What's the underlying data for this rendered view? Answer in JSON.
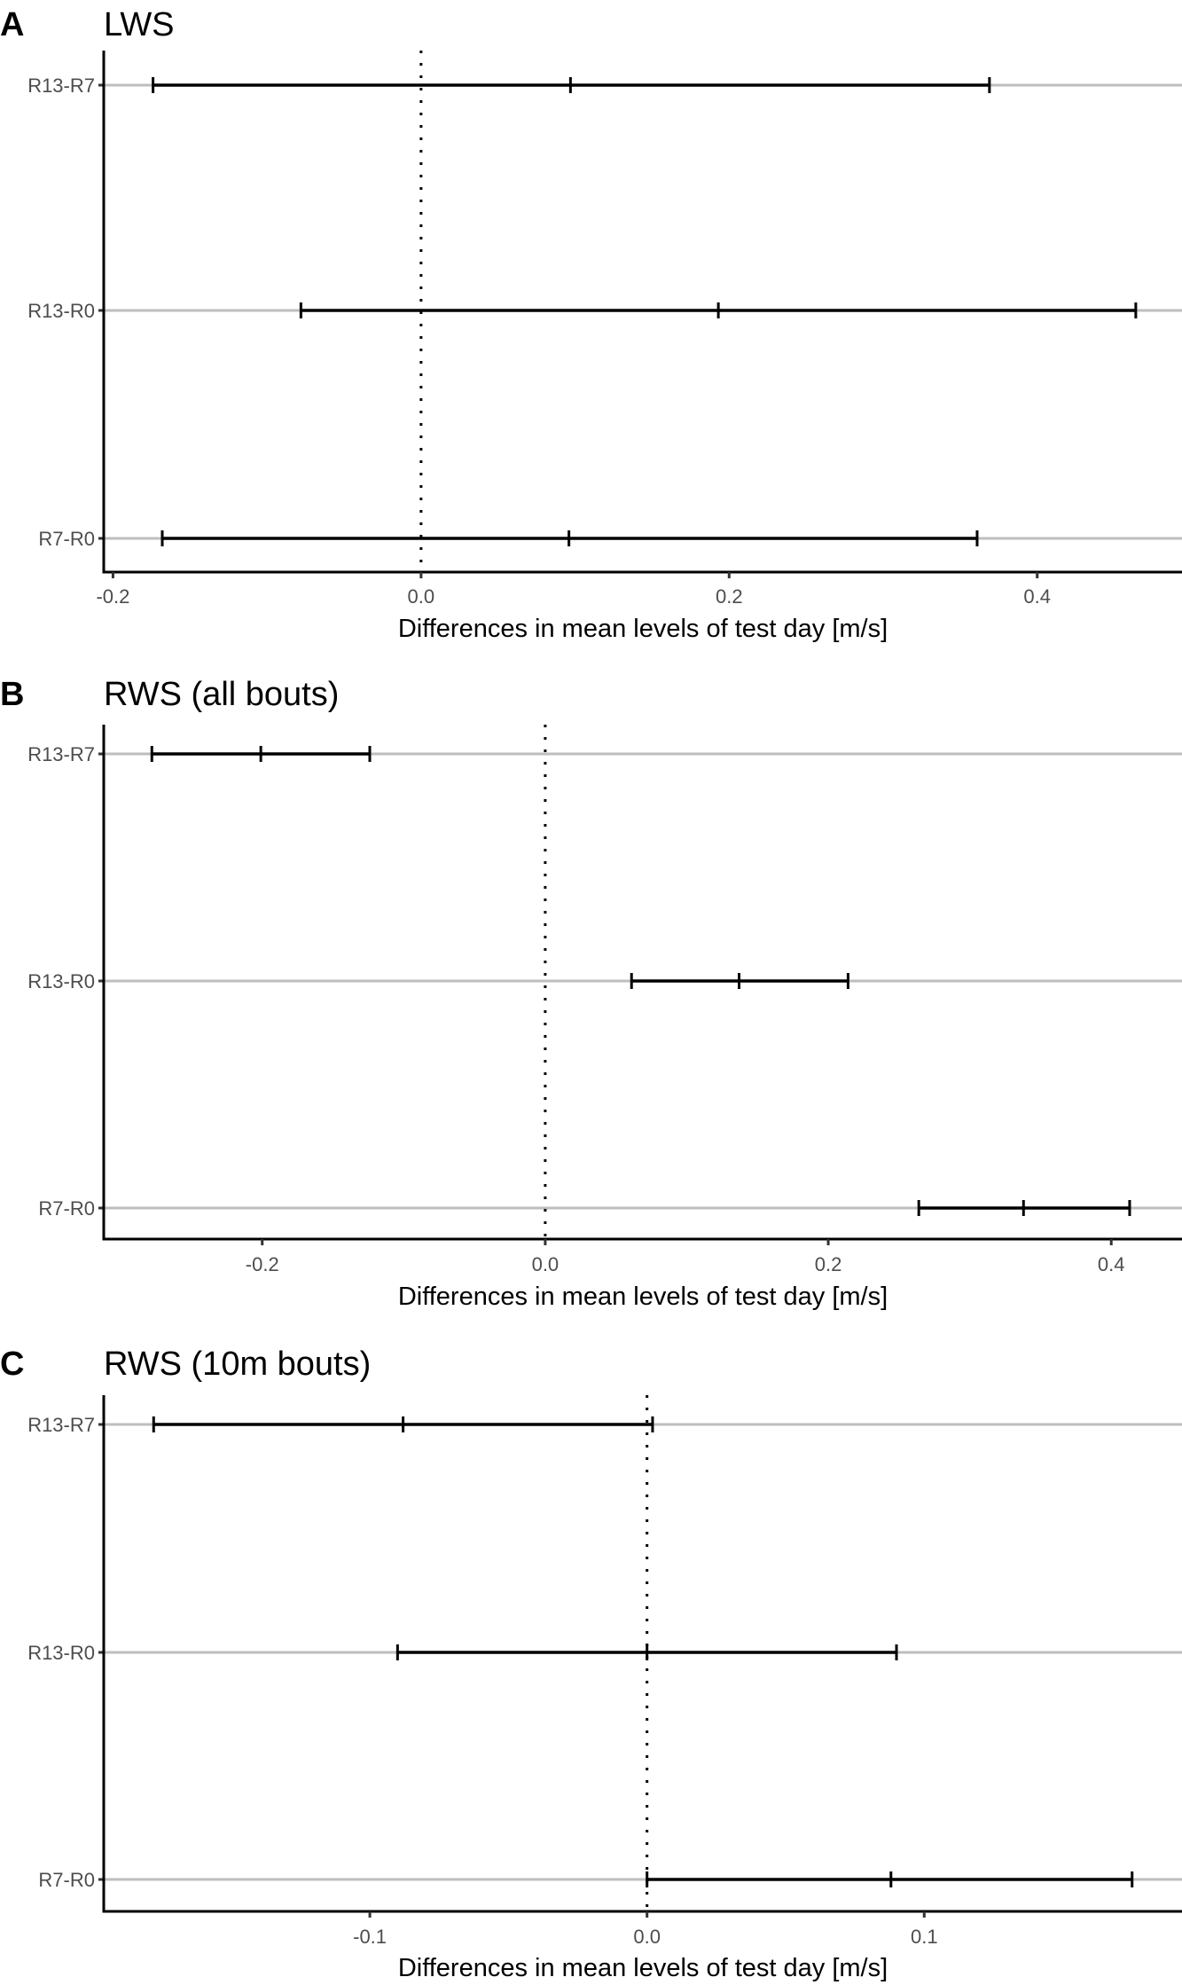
{
  "figure": {
    "xlabel": "Differences in mean levels of test day [m/s]",
    "colors": {
      "interval": "#000000",
      "gridline": "#bebebe",
      "axis": "#000000",
      "zero_line": "#000000",
      "tick_text": "#4d4d4d"
    }
  },
  "panels": [
    {
      "letter": "A",
      "title": "LWS"
    },
    {
      "letter": "B",
      "title": "RWS (all bouts)"
    },
    {
      "letter": "C",
      "title": "RWS (10m bouts)"
    }
  ],
  "chart_data": [
    {
      "type": "errorbar",
      "panel": "A",
      "title": "LWS",
      "xlabel": "Differences in mean levels of test day [m/s]",
      "ylabel": "",
      "categories": [
        "R13-R7",
        "R13-R0",
        "R7-R0"
      ],
      "series": [
        {
          "name": "lower",
          "values": [
            -0.174,
            -0.078,
            -0.168
          ]
        },
        {
          "name": "estimate",
          "values": [
            0.097,
            0.193,
            0.096
          ]
        },
        {
          "name": "upper",
          "values": [
            0.369,
            0.464,
            0.361
          ]
        }
      ],
      "xticks": [
        -0.2,
        0.0,
        0.2,
        0.4
      ],
      "xtick_labels": [
        "-0.2",
        "0.0",
        "0.2",
        "0.4"
      ],
      "xlim": [
        -0.206,
        0.494
      ],
      "reference_line": {
        "x": 0.0,
        "style": "dotted"
      },
      "grid": "horizontal major y only"
    },
    {
      "type": "errorbar",
      "panel": "B",
      "title": "RWS (all bouts)",
      "xlabel": "Differences in mean levels of test day [m/s]",
      "ylabel": "",
      "categories": [
        "R13-R7",
        "R13-R0",
        "R7-R0"
      ],
      "series": [
        {
          "name": "lower",
          "values": [
            -0.278,
            0.061,
            0.264
          ]
        },
        {
          "name": "estimate",
          "values": [
            -0.201,
            0.137,
            0.338
          ]
        },
        {
          "name": "upper",
          "values": [
            -0.124,
            0.214,
            0.413
          ]
        }
      ],
      "xticks": [
        -0.2,
        0.0,
        0.2,
        0.4
      ],
      "xtick_labels": [
        "-0.2",
        "0.0",
        "0.2",
        "0.4"
      ],
      "xlim": [
        -0.312,
        0.45
      ],
      "reference_line": {
        "x": 0.0,
        "style": "dotted"
      },
      "grid": "horizontal major y only"
    },
    {
      "type": "errorbar",
      "panel": "C",
      "title": "RWS (10m bouts)",
      "xlabel": "Differences in mean levels of test day [m/s]",
      "ylabel": "",
      "categories": [
        "R13-R7",
        "R13-R0",
        "R7-R0"
      ],
      "series": [
        {
          "name": "lower",
          "values": [
            -0.178,
            -0.09,
            0.0
          ]
        },
        {
          "name": "estimate",
          "values": [
            -0.088,
            0.0,
            0.088
          ]
        },
        {
          "name": "upper",
          "values": [
            0.002,
            0.09,
            0.175
          ]
        }
      ],
      "xticks": [
        -0.1,
        0.0,
        0.1
      ],
      "xtick_labels": [
        "-0.1",
        "0.0",
        "0.1"
      ],
      "xlim": [
        -0.196,
        0.193
      ],
      "reference_line": {
        "x": 0.0,
        "style": "dotted"
      },
      "grid": "horizontal major y only"
    }
  ]
}
